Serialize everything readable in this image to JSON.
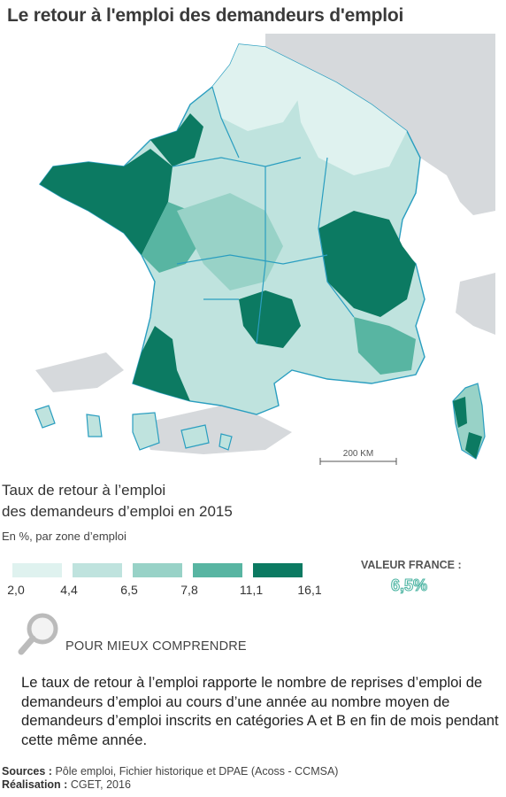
{
  "title": "Le retour à l'emploi des demandeurs d'emploi",
  "map": {
    "scale_label": "200 KM",
    "colors": {
      "sea": "#ffffff",
      "land_outside": "#d6d9dc",
      "region_border": "#2a9ec0",
      "zone_border": "#ffffff"
    }
  },
  "legend": {
    "title_line1": "Taux de retour à l’emploi",
    "title_line2": "des demandeurs d’emploi en 2015",
    "subtitle": "En %, par zone d’emploi",
    "classes": [
      {
        "color": "#dff2ef"
      },
      {
        "color": "#bfe3de"
      },
      {
        "color": "#98d2c7"
      },
      {
        "color": "#58b5a2"
      },
      {
        "color": "#0c7a62"
      }
    ],
    "ticks": [
      "2,0",
      "4,4",
      "6,5",
      "7,8",
      "11,1",
      "16,1"
    ],
    "valeur_france_label": "VALEUR FRANCE :",
    "valeur_france_value": "6,5%"
  },
  "pour_mieux_comprendre": "POUR MIEUX COMPRENDRE",
  "explanation": "Le taux de retour à l’emploi rapporte le nombre de reprises d’emploi de demandeurs d’emploi au cours d’une année au nombre moyen de demandeurs d’emploi inscrits en catégories A et B en fin de mois pendant cette même année.",
  "sources": {
    "sources_label": "Sources :",
    "sources_text": "Pôle emploi, Fichier historique et DPAE (Acoss - CCMSA)",
    "realisation_label": "Réalisation :",
    "realisation_text": "CGET, 2016"
  }
}
